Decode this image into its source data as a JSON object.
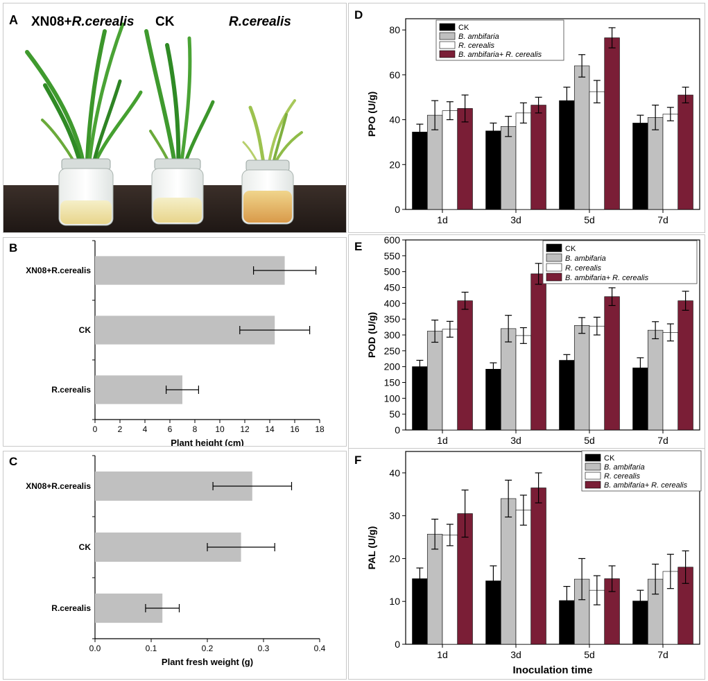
{
  "colors": {
    "ck": "#000000",
    "b_ambifaria": "#c0c0c0",
    "r_cerealis": "#ffffff",
    "combo": "#7a1e36",
    "hbar": "#c0c0c0",
    "leaf": "#3f9a2e",
    "leaf_pale": "#a7c85a",
    "table": "#2d2420",
    "jar_fill": "#efe2a6"
  },
  "panel_a": {
    "letter": "A",
    "labels": [
      {
        "plain": "XN08+",
        "italic": "R.cerealis"
      },
      {
        "plain": "CK",
        "italic": ""
      },
      {
        "plain": "",
        "italic": "R.cerealis"
      }
    ]
  },
  "chart_data": [
    {
      "panel": "B",
      "type": "bar",
      "orientation": "horizontal",
      "categories": [
        "XN08+R.cerealis",
        "CK",
        "R.cerealis"
      ],
      "values": [
        15.2,
        14.4,
        7.0
      ],
      "errors": [
        2.5,
        2.8,
        1.3
      ],
      "xlabel": "Plant height (cm)",
      "xlim": [
        0,
        18
      ],
      "ticks": [
        "0",
        "2",
        "4",
        "6",
        "8",
        "10",
        "12",
        "14",
        "16",
        "18"
      ]
    },
    {
      "panel": "C",
      "type": "bar",
      "orientation": "horizontal",
      "categories": [
        "XN08+R.cerealis",
        "CK",
        "R.cerealis"
      ],
      "values": [
        0.28,
        0.26,
        0.12
      ],
      "errors": [
        0.07,
        0.06,
        0.03
      ],
      "xlabel": "Plant fresh weight (g)",
      "xlim": [
        0,
        0.4
      ],
      "ticks": [
        "0.0",
        "0.1",
        "0.2",
        "0.3",
        "0.4"
      ]
    },
    {
      "panel": "D",
      "type": "bar",
      "categories": [
        "1d",
        "3d",
        "5d",
        "7d"
      ],
      "ylabel": "PPO (U/g)",
      "xlabel": "",
      "ylim": [
        0,
        85
      ],
      "ticks": [
        "0",
        "20",
        "40",
        "60",
        "80"
      ],
      "legend": [
        "CK",
        "B. ambifaria",
        "R. cerealis",
        "B. ambifaria+ R. cerealis"
      ],
      "series": [
        {
          "name": "CK",
          "values": [
            34.5,
            35.0,
            48.5,
            38.5
          ],
          "errors": [
            3.5,
            3.5,
            6.0,
            3.5
          ]
        },
        {
          "name": "B. ambifaria",
          "values": [
            42.0,
            37.0,
            64.0,
            41.0
          ],
          "errors": [
            6.5,
            4.5,
            5.0,
            5.5
          ]
        },
        {
          "name": "R. cerealis",
          "values": [
            44.0,
            43.0,
            52.5,
            42.5
          ],
          "errors": [
            4.0,
            4.5,
            5.0,
            3.0
          ]
        },
        {
          "name": "B. ambifaria+ R. cerealis",
          "values": [
            45.0,
            46.5,
            76.5,
            51.0
          ],
          "errors": [
            6.0,
            3.5,
            4.5,
            3.5
          ]
        }
      ]
    },
    {
      "panel": "E",
      "type": "bar",
      "categories": [
        "1d",
        "3d",
        "5d",
        "7d"
      ],
      "ylabel": "POD (U/g)",
      "xlabel": "",
      "ylim": [
        0,
        600
      ],
      "ticks": [
        "0",
        "50",
        "100",
        "150",
        "200",
        "250",
        "300",
        "350",
        "400",
        "450",
        "500",
        "550",
        "600"
      ],
      "legend": [
        "CK",
        "B. ambifaria",
        "R. cerealis",
        "B. ambifaria+ R. cerealis"
      ],
      "series": [
        {
          "name": "CK",
          "values": [
            200,
            192,
            220,
            196
          ],
          "errors": [
            20,
            20,
            18,
            32
          ]
        },
        {
          "name": "B. ambifaria",
          "values": [
            312,
            320,
            330,
            315
          ],
          "errors": [
            35,
            42,
            25,
            27
          ]
        },
        {
          "name": "R. cerealis",
          "values": [
            318,
            298,
            328,
            308
          ],
          "errors": [
            25,
            25,
            28,
            27
          ]
        },
        {
          "name": "B. ambifaria+ R. cerealis",
          "values": [
            408,
            493,
            421,
            408
          ],
          "errors": [
            27,
            33,
            28,
            30
          ]
        }
      ]
    },
    {
      "panel": "F",
      "type": "bar",
      "categories": [
        "1d",
        "3d",
        "5d",
        "7d"
      ],
      "ylabel": "PAL (U/g)",
      "xlabel": "Inoculation time",
      "ylim": [
        0,
        45
      ],
      "ticks": [
        "0",
        "10",
        "20",
        "30",
        "40"
      ],
      "legend": [
        "CK",
        "B. ambifaria",
        "R. cerealis",
        "B. ambifaria+ R. cerealis"
      ],
      "series": [
        {
          "name": "CK",
          "values": [
            15.3,
            14.8,
            10.2,
            10.1
          ],
          "errors": [
            2.5,
            3.5,
            3.3,
            2.5
          ]
        },
        {
          "name": "B. ambifaria",
          "values": [
            25.7,
            34.0,
            15.2,
            15.2
          ],
          "errors": [
            3.5,
            4.3,
            4.8,
            3.5
          ]
        },
        {
          "name": "R. cerealis",
          "values": [
            25.5,
            31.3,
            12.6,
            17.0
          ],
          "errors": [
            2.5,
            3.5,
            3.4,
            4.0
          ]
        },
        {
          "name": "B. ambifaria+ R. cerealis",
          "values": [
            30.5,
            36.5,
            15.3,
            18.0
          ],
          "errors": [
            5.5,
            3.5,
            3.0,
            3.8
          ]
        }
      ]
    }
  ]
}
